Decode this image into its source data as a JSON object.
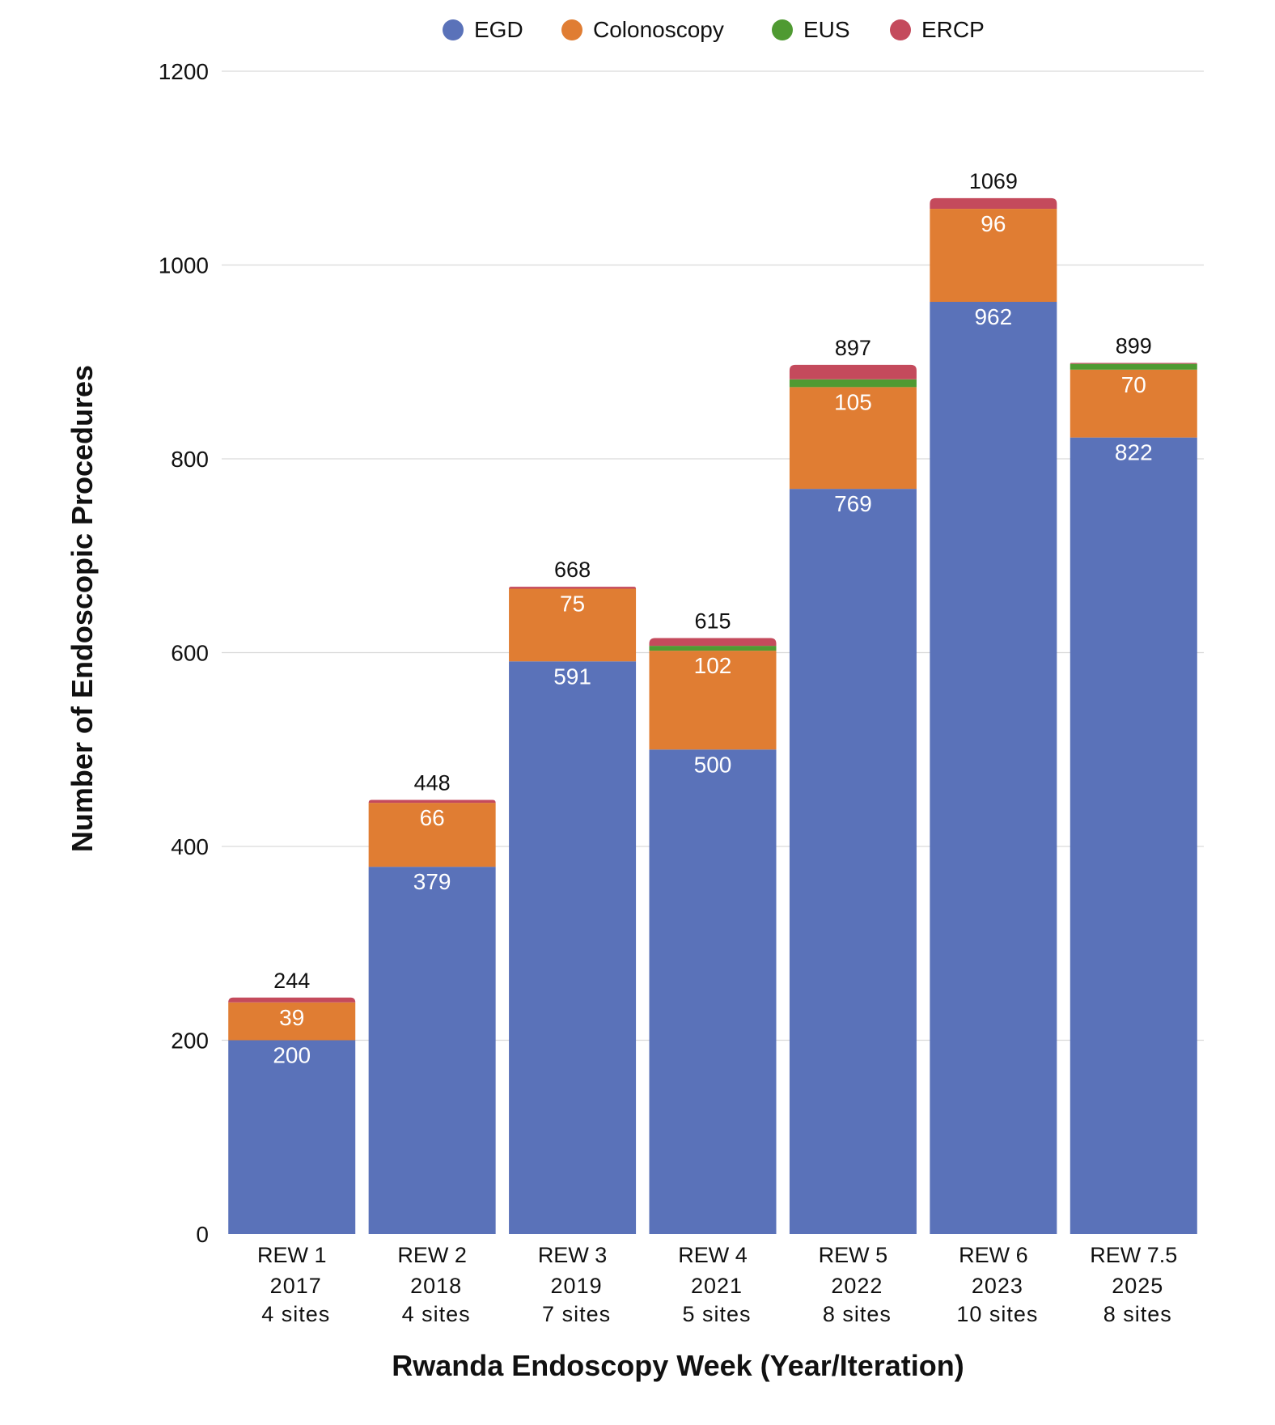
{
  "chart_data": {
    "type": "bar",
    "stacked": true,
    "title": "",
    "xlabel": "Rwanda Endoscopy Week (Year/Iteration)",
    "ylabel": "Number of Endoscopic Procedures",
    "ylim": [
      0,
      1200
    ],
    "yticks": [
      "0",
      "200",
      "400",
      "600",
      "800",
      "1000",
      "1200"
    ],
    "grid": true,
    "legend_position": "top-center",
    "categories": [
      {
        "label": "REW 1",
        "year": "2017",
        "sites": "4 sites"
      },
      {
        "label": "REW 2",
        "year": "2018",
        "sites": "4 sites"
      },
      {
        "label": "REW 3",
        "year": "2019",
        "sites": "7 sites"
      },
      {
        "label": "REW 4",
        "year": "2021",
        "sites": "5 sites"
      },
      {
        "label": "REW 5",
        "year": "2022",
        "sites": "8 sites"
      },
      {
        "label": "REW 6",
        "year": "2023",
        "sites": "10 sites"
      },
      {
        "label": "REW 7.5",
        "year": "2025",
        "sites": "8 sites"
      }
    ],
    "series": [
      {
        "name": "EGD",
        "color": "#5a72b9",
        "values": [
          200,
          379,
          591,
          500,
          769,
          962,
          822
        ],
        "labels": [
          "200",
          "379",
          "591",
          "500",
          "769",
          "962",
          "822"
        ]
      },
      {
        "name": "Colonoscopy",
        "color": "#e07d33",
        "values": [
          39,
          66,
          75,
          102,
          105,
          96,
          70
        ],
        "labels": [
          "39",
          "66",
          "75",
          "102",
          "105",
          "96",
          "70"
        ]
      },
      {
        "name": "EUS",
        "color": "#4f9a32",
        "values": [
          0,
          0,
          0,
          5,
          8,
          0,
          6
        ],
        "labels": [
          "",
          "",
          "",
          "",
          "",
          "",
          ""
        ]
      },
      {
        "name": "ERCP",
        "color": "#c44a5c",
        "values": [
          5,
          3,
          2,
          8,
          15,
          11,
          1
        ],
        "labels": [
          "",
          "",
          "",
          "",
          "",
          "",
          ""
        ]
      }
    ],
    "totals": [
      "244",
      "448",
      "668",
      "615",
      "897",
      "1069",
      "899"
    ]
  }
}
